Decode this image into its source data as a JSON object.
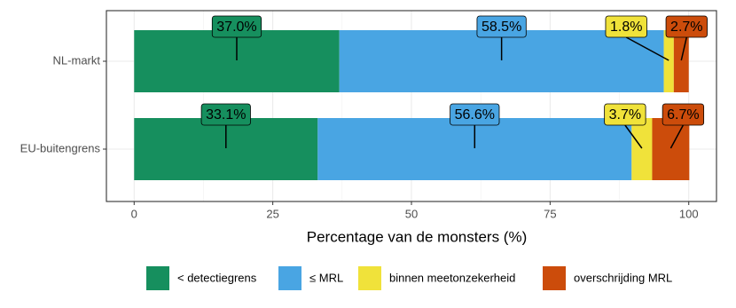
{
  "chart_data": {
    "type": "stacked-barh",
    "categories": [
      "NL-markt",
      "EU-buitengrens"
    ],
    "series": [
      {
        "name": "< detectiegrens",
        "color": "#168f5e",
        "values": [
          37.0,
          33.1
        ],
        "value_labels": [
          "37.0%",
          "33.1%"
        ]
      },
      {
        "name": "≤ MRL",
        "color": "#49a5e3",
        "values": [
          58.5,
          56.6
        ],
        "value_labels": [
          "58.5%",
          "56.6%"
        ]
      },
      {
        "name": "binnen meetonzekerheid",
        "color": "#f0e23a",
        "values": [
          1.8,
          3.7
        ],
        "value_labels": [
          "1.8%",
          "3.7%"
        ]
      },
      {
        "name": "overschrijding MRL",
        "color": "#cc4c0b",
        "values": [
          2.7,
          6.7
        ],
        "value_labels": [
          "2.7%",
          "6.7%"
        ]
      }
    ],
    "xlabel": "Percentage van de monsters (%)",
    "xlim": [
      -5,
      105
    ],
    "xticks": [
      0,
      25,
      50,
      75,
      100
    ],
    "grid": true,
    "legend": "bottom"
  }
}
